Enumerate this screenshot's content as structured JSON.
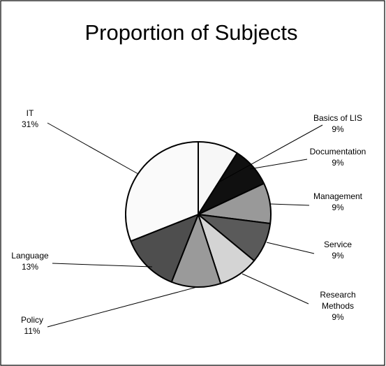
{
  "chart_data": {
    "type": "pie",
    "title": "Proportion of Subjects",
    "slices": [
      {
        "label_lines": [
          "Basics of LIS"
        ],
        "percent_label": "9%",
        "value": 9,
        "color": "#f7f7f7"
      },
      {
        "label_lines": [
          "Documentation"
        ],
        "percent_label": "9%",
        "value": 9,
        "color": "#101010"
      },
      {
        "label_lines": [
          "Management"
        ],
        "percent_label": "9%",
        "value": 9,
        "color": "#999999"
      },
      {
        "label_lines": [
          "Service"
        ],
        "percent_label": "9%",
        "value": 9,
        "color": "#5a5a5a"
      },
      {
        "label_lines": [
          "Research",
          "Methods"
        ],
        "percent_label": "9%",
        "value": 9,
        "color": "#d4d4d4"
      },
      {
        "label_lines": [
          "Policy"
        ],
        "percent_label": "11%",
        "value": 11,
        "color": "#9a9a9a"
      },
      {
        "label_lines": [
          "Language"
        ],
        "percent_label": "13%",
        "value": 13,
        "color": "#4e4e4e"
      },
      {
        "label_lines": [
          "IT"
        ],
        "percent_label": "31%",
        "value": 31,
        "color": "#fafafa"
      }
    ],
    "start_angle": "12 o'clock",
    "direction": "clockwise",
    "legend": "none",
    "labels": "outside with leader lines"
  }
}
